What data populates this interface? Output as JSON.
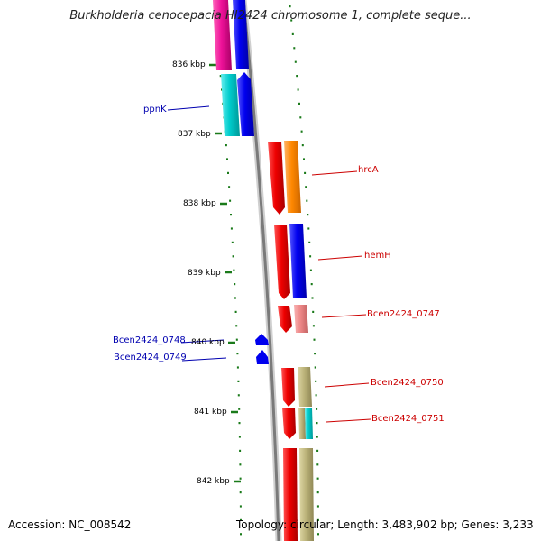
{
  "header": {
    "title": "Burkholderia cenocepacia HI2424 chromosome 1, complete seque..."
  },
  "footer": {
    "accession": "Accession: NC_008542",
    "topology": "Topology: circular; Length: 3,483,902 bp; Genes: 3,233"
  },
  "ticks": [
    "836 kbp",
    "837 kbp",
    "838 kbp",
    "839 kbp",
    "840 kbp",
    "841 kbp",
    "842 kbp"
  ],
  "gene_labels": [
    {
      "text": "ppnK",
      "color": "#0000b0"
    },
    {
      "text": "hrcA",
      "color": "#cc0000"
    },
    {
      "text": "hemH",
      "color": "#cc0000"
    },
    {
      "text": "Bcen2424_0747",
      "color": "#cc0000"
    },
    {
      "text": "Bcen2424_0748",
      "color": "#0000b0"
    },
    {
      "text": "Bcen2424_0749",
      "color": "#0000b0"
    },
    {
      "text": "Bcen2424_0750",
      "color": "#cc0000"
    },
    {
      "text": "Bcen2424_0751",
      "color": "#cc0000"
    }
  ],
  "colors": {
    "backbone": "#888888",
    "tick_mark": "#1a7a1a",
    "forward_strand": "#ee0000",
    "reverse_strand": "#0000ee",
    "cog_orange": "#ff8800",
    "cog_blue": "#1111ee",
    "cog_pink": "#ee8888",
    "cog_khaki": "#bcb37a",
    "cog_cyan": "#00cccc",
    "cog_magenta": "#ee1199"
  }
}
